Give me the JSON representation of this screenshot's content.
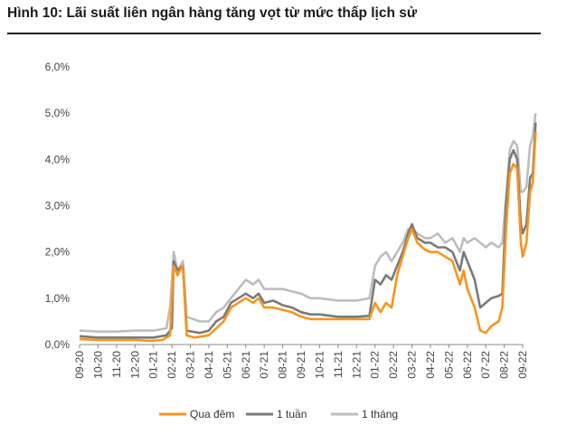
{
  "title": "Hình 10: Lãi suất liên ngân hàng tăng vọt từ mức thấp lịch sử",
  "colors": {
    "overnight": "#f7941d",
    "week": "#7a7a7a",
    "month": "#bdbdbd"
  },
  "chart_data": {
    "type": "line",
    "title": "Hình 10: Lãi suất liên ngân hàng tăng vọt từ mức thấp lịch sử",
    "xlabel": "",
    "ylabel": "",
    "ylim": [
      0,
      6
    ],
    "y_ticks": [
      "0,0%",
      "1,0%",
      "2,0%",
      "3,0%",
      "4,0%",
      "5,0%",
      "6,0%"
    ],
    "x_ticks": [
      "09-20",
      "10-20",
      "11-20",
      "12-20",
      "01-21",
      "02-21",
      "03-21",
      "04-21",
      "05-21",
      "06-21",
      "07-21",
      "08-21",
      "09-21",
      "10-21",
      "11-21",
      "12-21",
      "01-22",
      "02-22",
      "03-22",
      "04-22",
      "05-22",
      "06-22",
      "07-22",
      "08-22",
      "09-22"
    ],
    "grid": false,
    "legend": "bottom",
    "series": [
      {
        "name": "Qua đêm",
        "color": "#f7941d",
        "points": [
          [
            0,
            0.12
          ],
          [
            1.0,
            0.1
          ],
          [
            2.0,
            0.1
          ],
          [
            3.0,
            0.1
          ],
          [
            3.8,
            0.08
          ],
          [
            4.5,
            0.1
          ],
          [
            4.9,
            0.2
          ],
          [
            5.1,
            1.7
          ],
          [
            5.3,
            1.5
          ],
          [
            5.6,
            1.7
          ],
          [
            5.8,
            0.2
          ],
          [
            6.2,
            0.15
          ],
          [
            7.0,
            0.2
          ],
          [
            7.4,
            0.35
          ],
          [
            7.8,
            0.5
          ],
          [
            8.2,
            0.8
          ],
          [
            8.6,
            0.9
          ],
          [
            9.0,
            1.0
          ],
          [
            9.4,
            0.9
          ],
          [
            9.7,
            1.0
          ],
          [
            10.0,
            0.8
          ],
          [
            10.5,
            0.8
          ],
          [
            11.0,
            0.75
          ],
          [
            11.5,
            0.7
          ],
          [
            12.0,
            0.6
          ],
          [
            12.5,
            0.55
          ],
          [
            13.0,
            0.55
          ],
          [
            14.0,
            0.55
          ],
          [
            15.0,
            0.55
          ],
          [
            15.7,
            0.55
          ],
          [
            16.0,
            0.9
          ],
          [
            16.3,
            0.7
          ],
          [
            16.6,
            0.9
          ],
          [
            16.9,
            0.8
          ],
          [
            17.2,
            1.5
          ],
          [
            17.5,
            1.9
          ],
          [
            17.8,
            2.3
          ],
          [
            18.0,
            2.5
          ],
          [
            18.3,
            2.2
          ],
          [
            18.7,
            2.05
          ],
          [
            19.0,
            2.0
          ],
          [
            19.4,
            2.0
          ],
          [
            19.8,
            1.9
          ],
          [
            20.2,
            1.8
          ],
          [
            20.6,
            1.3
          ],
          [
            20.8,
            1.6
          ],
          [
            21.0,
            1.2
          ],
          [
            21.4,
            0.8
          ],
          [
            21.7,
            0.3
          ],
          [
            22.0,
            0.25
          ],
          [
            22.3,
            0.4
          ],
          [
            22.7,
            0.5
          ],
          [
            22.9,
            0.8
          ],
          [
            23.1,
            2.5
          ],
          [
            23.3,
            3.7
          ],
          [
            23.5,
            3.9
          ],
          [
            23.7,
            3.8
          ],
          [
            23.9,
            2.2
          ],
          [
            24.0,
            1.9
          ],
          [
            24.2,
            2.2
          ],
          [
            24.4,
            3.3
          ],
          [
            24.55,
            3.5
          ],
          [
            24.7,
            4.6
          ]
        ]
      },
      {
        "name": "1 tuần",
        "color": "#7a7a7a",
        "points": [
          [
            0,
            0.18
          ],
          [
            1.0,
            0.15
          ],
          [
            2.0,
            0.15
          ],
          [
            3.0,
            0.15
          ],
          [
            4.0,
            0.15
          ],
          [
            4.7,
            0.2
          ],
          [
            5.0,
            0.35
          ],
          [
            5.1,
            1.8
          ],
          [
            5.3,
            1.6
          ],
          [
            5.6,
            1.7
          ],
          [
            5.8,
            0.3
          ],
          [
            6.5,
            0.25
          ],
          [
            7.0,
            0.3
          ],
          [
            7.4,
            0.5
          ],
          [
            7.8,
            0.6
          ],
          [
            8.2,
            0.9
          ],
          [
            8.6,
            1.0
          ],
          [
            9.0,
            1.1
          ],
          [
            9.4,
            1.0
          ],
          [
            9.7,
            1.1
          ],
          [
            10.0,
            0.9
          ],
          [
            10.5,
            0.95
          ],
          [
            11.0,
            0.85
          ],
          [
            11.5,
            0.8
          ],
          [
            12.0,
            0.7
          ],
          [
            12.5,
            0.65
          ],
          [
            13.0,
            0.65
          ],
          [
            14.0,
            0.6
          ],
          [
            15.0,
            0.6
          ],
          [
            15.7,
            0.62
          ],
          [
            16.0,
            1.4
          ],
          [
            16.3,
            1.3
          ],
          [
            16.6,
            1.5
          ],
          [
            16.9,
            1.4
          ],
          [
            17.2,
            1.7
          ],
          [
            17.5,
            2.0
          ],
          [
            17.8,
            2.4
          ],
          [
            18.0,
            2.6
          ],
          [
            18.3,
            2.3
          ],
          [
            18.7,
            2.2
          ],
          [
            19.0,
            2.2
          ],
          [
            19.4,
            2.1
          ],
          [
            19.8,
            2.1
          ],
          [
            20.2,
            2.0
          ],
          [
            20.6,
            1.6
          ],
          [
            20.8,
            2.0
          ],
          [
            21.0,
            1.8
          ],
          [
            21.4,
            1.4
          ],
          [
            21.7,
            0.8
          ],
          [
            22.0,
            0.9
          ],
          [
            22.3,
            1.0
          ],
          [
            22.7,
            1.05
          ],
          [
            22.9,
            1.1
          ],
          [
            23.1,
            3.0
          ],
          [
            23.3,
            4.0
          ],
          [
            23.5,
            4.2
          ],
          [
            23.7,
            4.0
          ],
          [
            23.9,
            2.6
          ],
          [
            24.0,
            2.4
          ],
          [
            24.2,
            2.6
          ],
          [
            24.4,
            3.6
          ],
          [
            24.55,
            3.7
          ],
          [
            24.7,
            4.8
          ]
        ]
      },
      {
        "name": "1 tháng",
        "color": "#bdbdbd",
        "points": [
          [
            0,
            0.3
          ],
          [
            1.0,
            0.28
          ],
          [
            2.0,
            0.28
          ],
          [
            3.0,
            0.3
          ],
          [
            4.0,
            0.3
          ],
          [
            4.7,
            0.35
          ],
          [
            4.9,
            0.8
          ],
          [
            5.1,
            2.0
          ],
          [
            5.3,
            1.6
          ],
          [
            5.6,
            1.8
          ],
          [
            5.8,
            0.6
          ],
          [
            6.5,
            0.5
          ],
          [
            7.0,
            0.5
          ],
          [
            7.4,
            0.7
          ],
          [
            7.8,
            0.8
          ],
          [
            8.2,
            1.0
          ],
          [
            8.6,
            1.2
          ],
          [
            9.0,
            1.4
          ],
          [
            9.4,
            1.3
          ],
          [
            9.7,
            1.4
          ],
          [
            10.0,
            1.2
          ],
          [
            10.5,
            1.2
          ],
          [
            11.0,
            1.2
          ],
          [
            11.5,
            1.15
          ],
          [
            12.0,
            1.1
          ],
          [
            12.5,
            1.0
          ],
          [
            13.0,
            1.0
          ],
          [
            14.0,
            0.95
          ],
          [
            15.0,
            0.95
          ],
          [
            15.7,
            1.0
          ],
          [
            16.0,
            1.7
          ],
          [
            16.3,
            1.9
          ],
          [
            16.6,
            2.0
          ],
          [
            16.9,
            1.8
          ],
          [
            17.2,
            2.0
          ],
          [
            17.5,
            2.2
          ],
          [
            17.8,
            2.5
          ],
          [
            18.0,
            2.5
          ],
          [
            18.3,
            2.4
          ],
          [
            18.7,
            2.3
          ],
          [
            19.0,
            2.3
          ],
          [
            19.4,
            2.4
          ],
          [
            19.8,
            2.2
          ],
          [
            20.2,
            2.3
          ],
          [
            20.6,
            2.0
          ],
          [
            20.8,
            2.3
          ],
          [
            21.0,
            2.2
          ],
          [
            21.4,
            2.3
          ],
          [
            21.7,
            2.2
          ],
          [
            22.0,
            2.1
          ],
          [
            22.3,
            2.2
          ],
          [
            22.7,
            2.1
          ],
          [
            22.9,
            2.2
          ],
          [
            23.1,
            3.2
          ],
          [
            23.3,
            4.2
          ],
          [
            23.5,
            4.4
          ],
          [
            23.7,
            4.3
          ],
          [
            23.9,
            3.3
          ],
          [
            24.0,
            3.3
          ],
          [
            24.2,
            3.4
          ],
          [
            24.4,
            4.3
          ],
          [
            24.55,
            4.5
          ],
          [
            24.7,
            5.0
          ]
        ]
      }
    ]
  }
}
